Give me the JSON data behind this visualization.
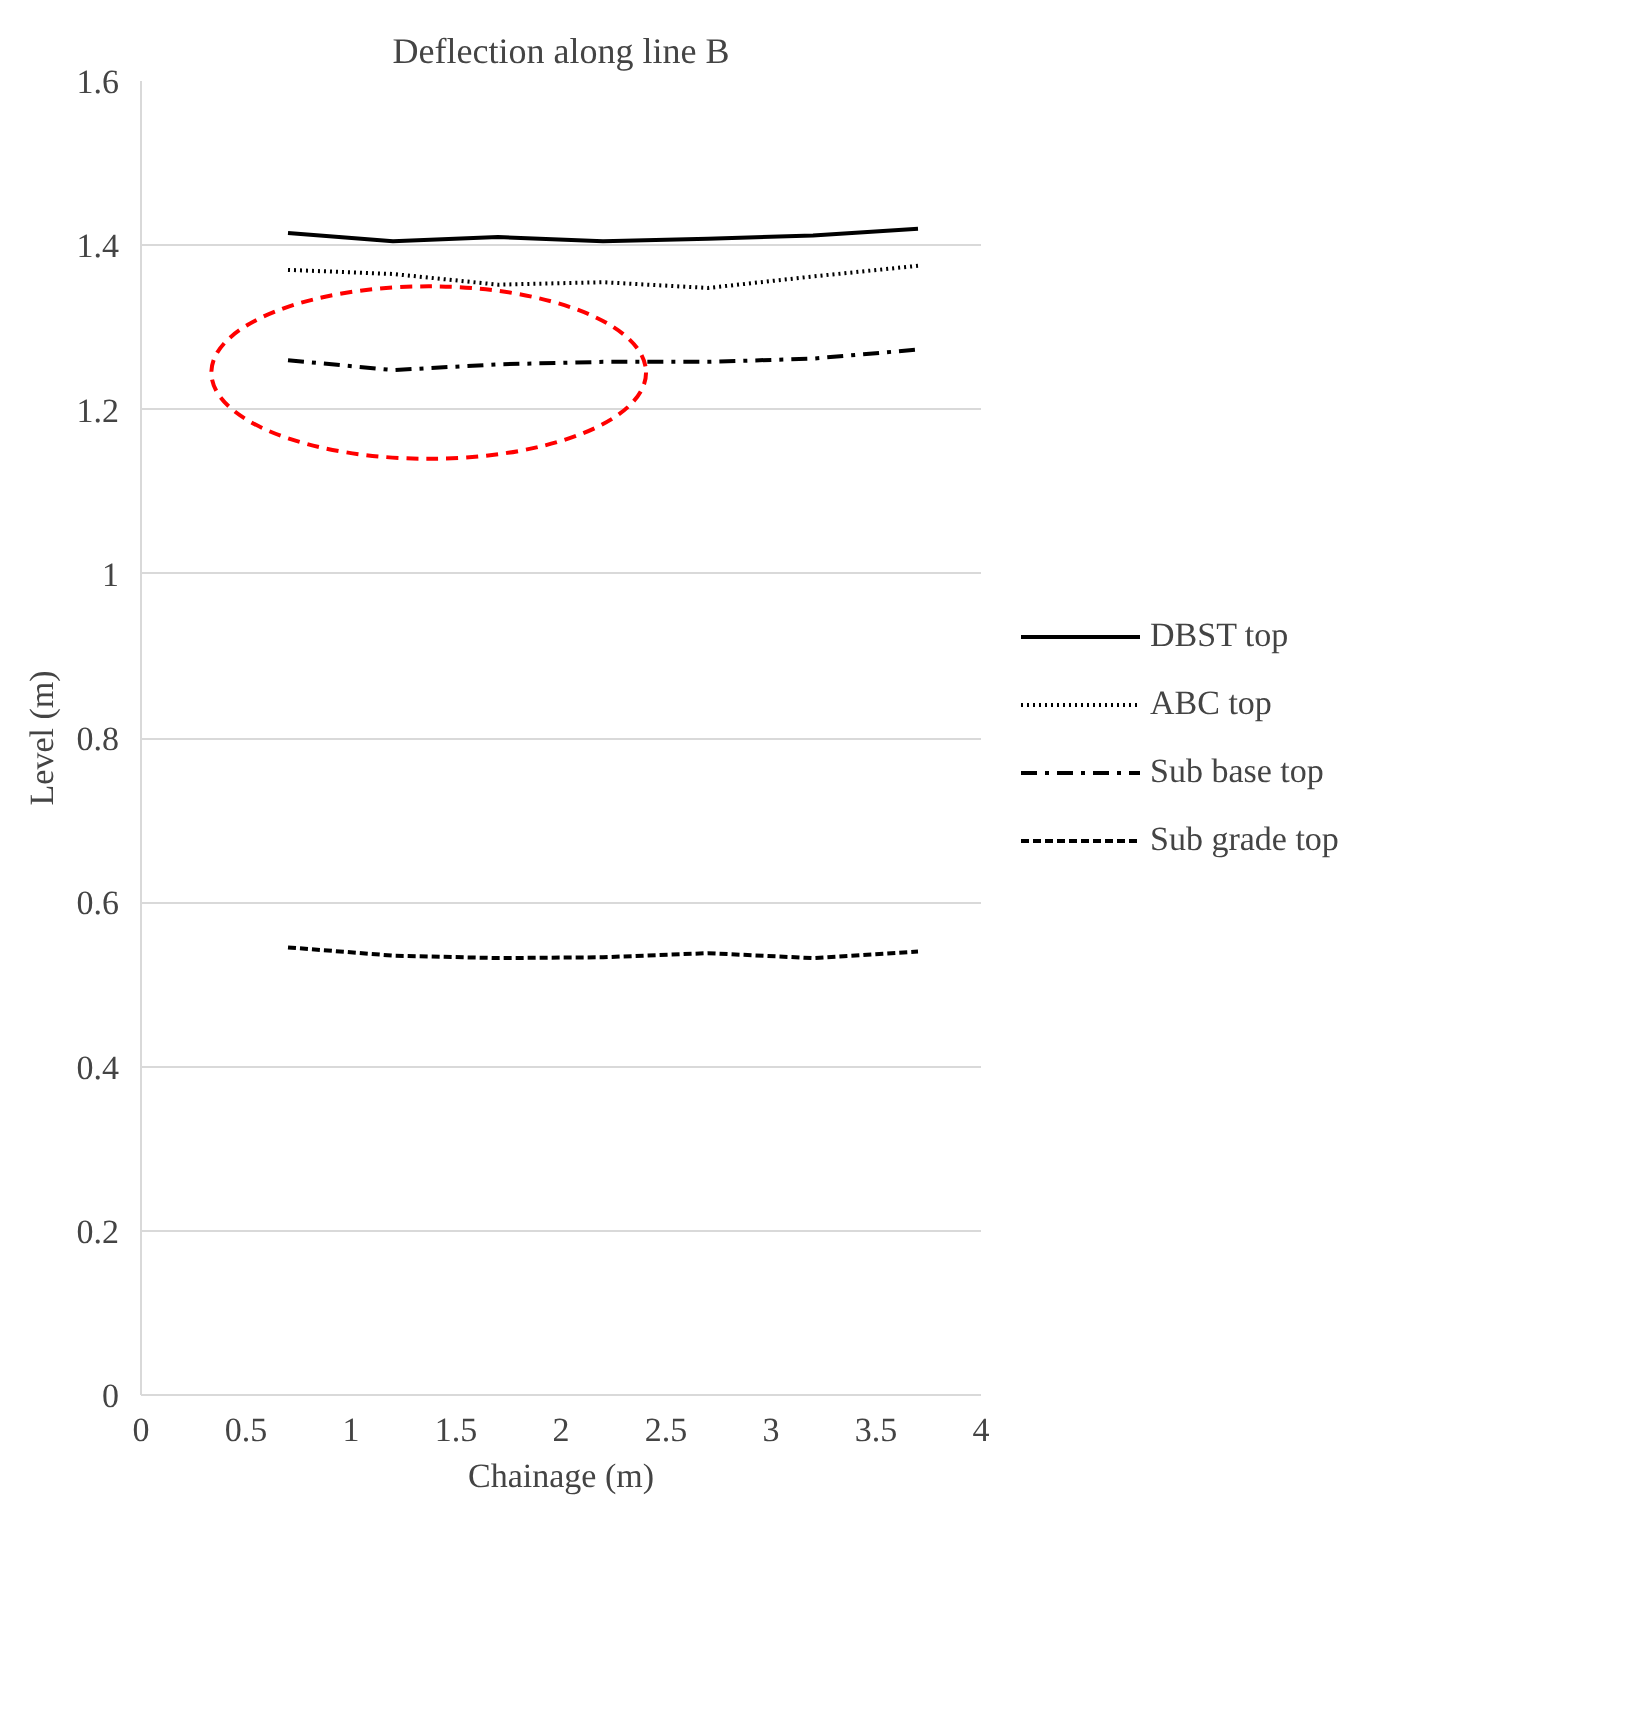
{
  "chart_data": {
    "type": "line",
    "title": "Deflection along line B",
    "xlabel": "Chainage (m)",
    "ylabel": "Level (m)",
    "x": [
      0.7,
      1.2,
      1.7,
      2.2,
      2.7,
      3.2,
      3.7
    ],
    "series": [
      {
        "name": "DBST top",
        "color": "#000000",
        "line_style": "solid",
        "values": [
          1.415,
          1.405,
          1.41,
          1.405,
          1.408,
          1.412,
          1.42
        ]
      },
      {
        "name": "ABC top",
        "color": "#000000",
        "line_style": "dotted",
        "values": [
          1.37,
          1.365,
          1.352,
          1.355,
          1.348,
          1.362,
          1.375
        ]
      },
      {
        "name": "Sub base top",
        "color": "#000000",
        "line_style": "dashdot",
        "values": [
          1.26,
          1.248,
          1.255,
          1.258,
          1.258,
          1.262,
          1.273
        ]
      },
      {
        "name": "Sub grade top",
        "color": "#000000",
        "line_style": "dashed",
        "values": [
          0.545,
          0.535,
          0.532,
          0.533,
          0.538,
          0.532,
          0.54
        ]
      }
    ],
    "xlim": [
      0,
      4
    ],
    "xticks": [
      0,
      0.5,
      1,
      1.5,
      2,
      2.5,
      3,
      3.5,
      4
    ],
    "ylim": [
      0,
      1.6
    ],
    "yticks": [
      0,
      0.2,
      0.4,
      0.6,
      0.8,
      1,
      1.2,
      1.4,
      1.6
    ],
    "grid": "y",
    "legend": "right"
  }
}
